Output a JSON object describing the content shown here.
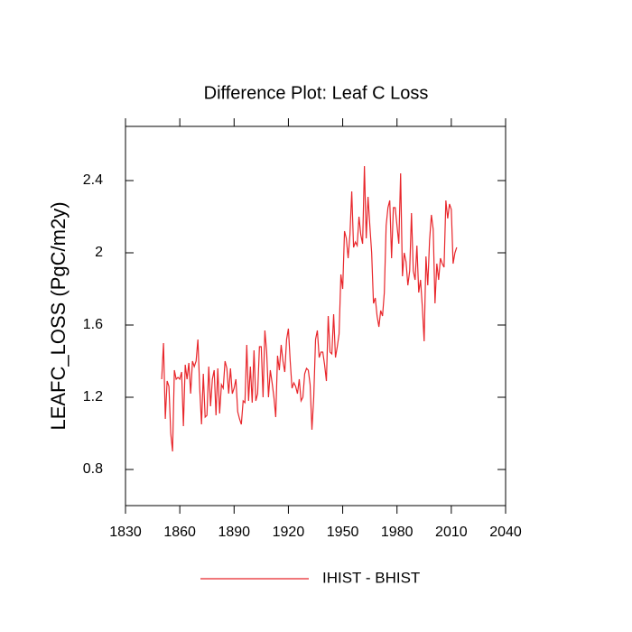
{
  "chart_data": {
    "type": "line",
    "title": "Difference Plot: Leaf C Loss",
    "y_label": "LEAFC_LOSS  (PgC/m2y)",
    "x": [
      1850,
      1851,
      1852,
      1853,
      1854,
      1855,
      1856,
      1857,
      1858,
      1859,
      1860,
      1861,
      1862,
      1863,
      1864,
      1865,
      1866,
      1867,
      1868,
      1869,
      1870,
      1871,
      1872,
      1873,
      1874,
      1875,
      1876,
      1877,
      1878,
      1879,
      1880,
      1881,
      1882,
      1883,
      1884,
      1885,
      1886,
      1887,
      1888,
      1889,
      1890,
      1891,
      1892,
      1893,
      1894,
      1895,
      1896,
      1897,
      1898,
      1899,
      1900,
      1901,
      1902,
      1903,
      1904,
      1905,
      1906,
      1907,
      1908,
      1909,
      1910,
      1911,
      1912,
      1913,
      1914,
      1915,
      1916,
      1917,
      1918,
      1919,
      1920,
      1921,
      1922,
      1923,
      1924,
      1925,
      1926,
      1927,
      1928,
      1929,
      1930,
      1931,
      1932,
      1933,
      1934,
      1935,
      1936,
      1937,
      1938,
      1939,
      1940,
      1941,
      1942,
      1943,
      1944,
      1945,
      1946,
      1947,
      1948,
      1949,
      1950,
      1951,
      1952,
      1953,
      1954,
      1955,
      1956,
      1957,
      1958,
      1959,
      1960,
      1961,
      1962,
      1963,
      1964,
      1965,
      1966,
      1967,
      1968,
      1969,
      1970,
      1971,
      1972,
      1973,
      1974,
      1975,
      1976,
      1977,
      1978,
      1979,
      1980,
      1981,
      1982,
      1983,
      1984,
      1985,
      1986,
      1987,
      1988,
      1989,
      1990,
      1991,
      1992,
      1993,
      1994,
      1995,
      1996,
      1997,
      1998,
      1999,
      2000,
      2001,
      2002,
      2003,
      2004,
      2005,
      2006,
      2007,
      2008,
      2009,
      2010,
      2011,
      2012,
      2013
    ],
    "series": [
      {
        "name": "IHIST - BHIST",
        "color": "#e8262b",
        "values": [
          1.3,
          1.5,
          1.08,
          1.29,
          1.26,
          1.0,
          0.9,
          1.35,
          1.3,
          1.31,
          1.3,
          1.34,
          1.04,
          1.38,
          1.3,
          1.39,
          1.22,
          1.4,
          1.37,
          1.4,
          1.52,
          1.25,
          1.05,
          1.33,
          1.09,
          1.1,
          1.37,
          1.15,
          1.3,
          1.35,
          1.1,
          1.36,
          1.11,
          1.27,
          1.25,
          1.4,
          1.36,
          1.22,
          1.36,
          1.22,
          1.25,
          1.3,
          1.12,
          1.08,
          1.05,
          1.18,
          1.17,
          1.49,
          1.18,
          1.37,
          1.17,
          1.46,
          1.18,
          1.22,
          1.48,
          1.48,
          1.2,
          1.57,
          1.45,
          1.2,
          1.35,
          1.28,
          1.2,
          1.09,
          1.43,
          1.35,
          1.49,
          1.4,
          1.34,
          1.52,
          1.58,
          1.4,
          1.25,
          1.28,
          1.26,
          1.22,
          1.3,
          1.18,
          1.2,
          1.33,
          1.36,
          1.35,
          1.27,
          1.02,
          1.2,
          1.52,
          1.57,
          1.42,
          1.45,
          1.45,
          1.38,
          1.29,
          1.65,
          1.45,
          1.44,
          1.66,
          1.42,
          1.48,
          1.55,
          1.88,
          1.8,
          2.12,
          2.08,
          1.97,
          2.1,
          2.34,
          2.03,
          2.06,
          2.04,
          2.2,
          2.1,
          2.05,
          2.48,
          2.08,
          2.31,
          2.15,
          2.0,
          1.72,
          1.75,
          1.65,
          1.59,
          1.68,
          1.65,
          1.78,
          2.15,
          2.25,
          2.29,
          1.97,
          2.25,
          2.25,
          2.15,
          2.05,
          2.44,
          1.87,
          2.0,
          1.95,
          1.82,
          1.9,
          2.22,
          1.9,
          1.85,
          2.04,
          1.78,
          1.85,
          1.7,
          1.51,
          1.98,
          1.82,
          2.07,
          2.21,
          2.13,
          1.72,
          1.94,
          1.85,
          1.97,
          1.94,
          1.92,
          2.29,
          2.19,
          2.27,
          2.24,
          1.94,
          2.0,
          2.03
        ]
      }
    ],
    "xlim": [
      1830,
      2040
    ],
    "xticks": [
      1830,
      1860,
      1890,
      1920,
      1950,
      1980,
      2010,
      2040
    ],
    "ylim": [
      0.6,
      2.7
    ],
    "yticks": [
      0.8,
      1.2,
      1.6,
      2.0,
      2.4
    ],
    "legend": "bottom"
  }
}
